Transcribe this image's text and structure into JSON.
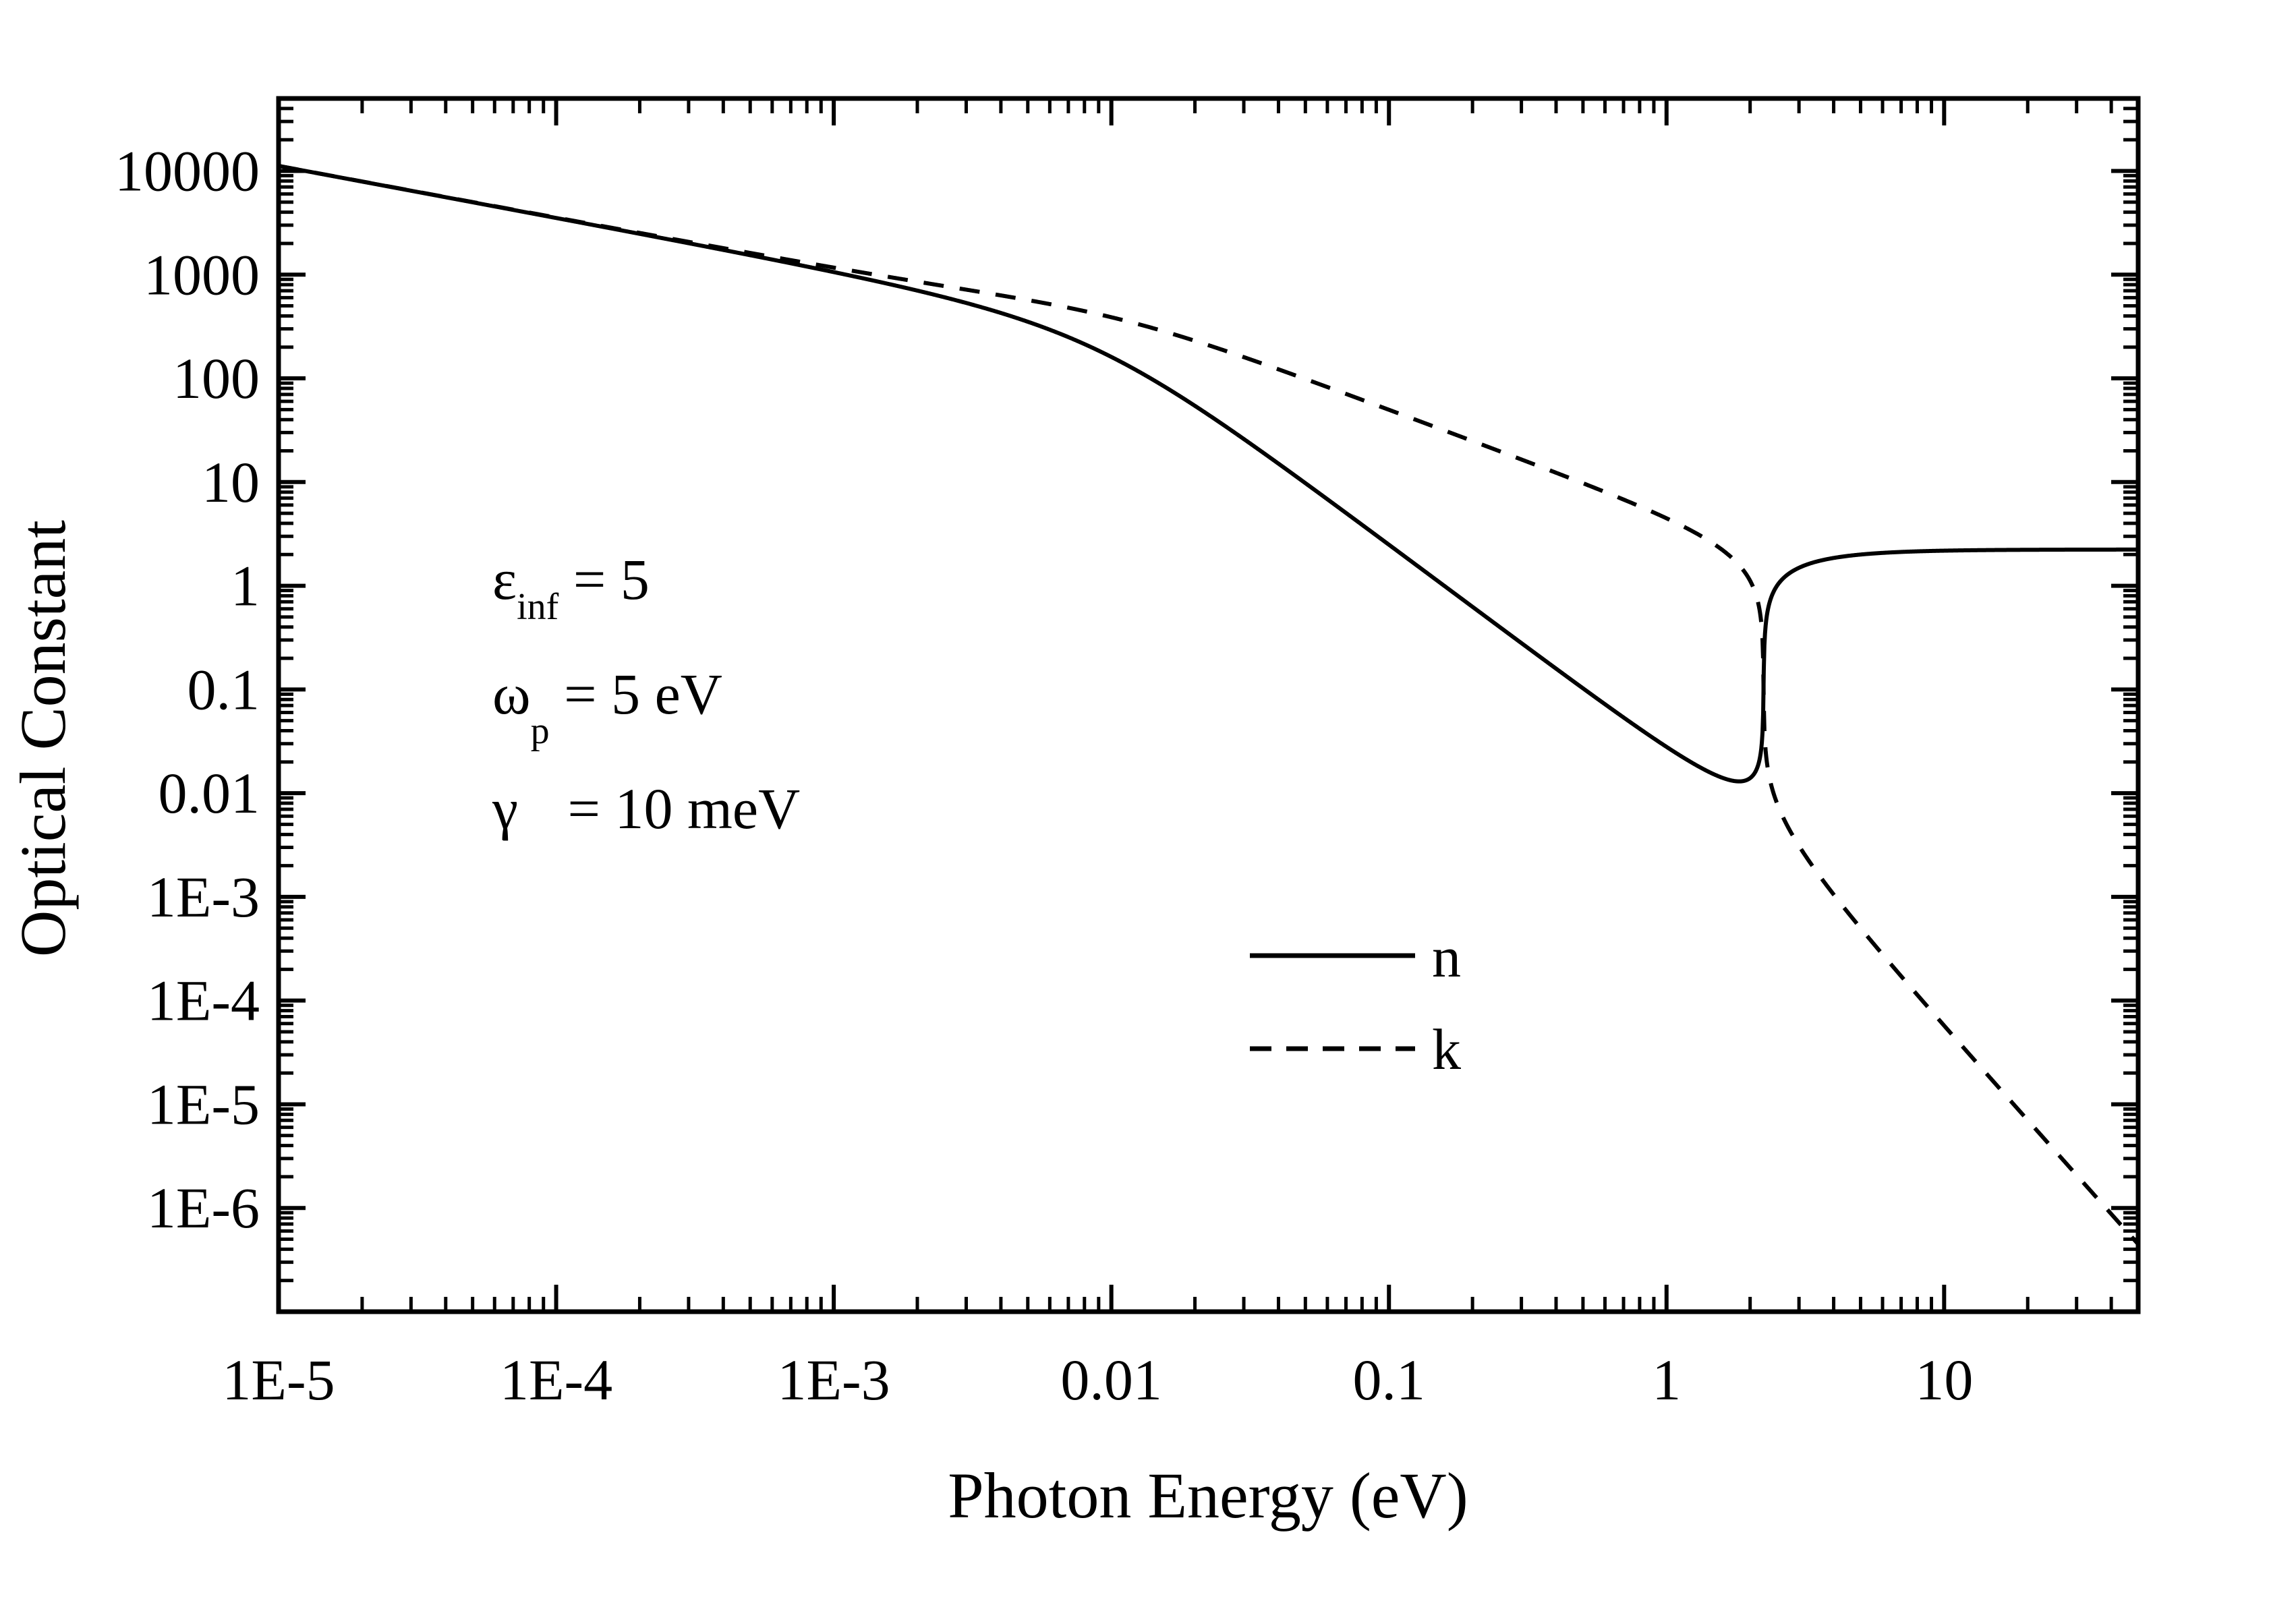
{
  "chart_data": {
    "type": "line",
    "title": "",
    "xlabel": "Photon Energy (eV)",
    "ylabel": "Optical Constant",
    "xscale": "log",
    "yscale": "log",
    "xlim": [
      1e-05,
      50
    ],
    "ylim": [
      1e-07,
      50000
    ],
    "x_ticks": [
      {
        "value": 1e-05,
        "label": "1E-5"
      },
      {
        "value": 0.0001,
        "label": "1E-4"
      },
      {
        "value": 0.001,
        "label": "1E-3"
      },
      {
        "value": 0.01,
        "label": "0.01"
      },
      {
        "value": 0.1,
        "label": "0.1"
      },
      {
        "value": 1,
        "label": "1"
      },
      {
        "value": 10,
        "label": "10"
      }
    ],
    "y_ticks": [
      {
        "value": 10000,
        "label": "10000"
      },
      {
        "value": 1000,
        "label": "1000"
      },
      {
        "value": 100,
        "label": "100"
      },
      {
        "value": 10,
        "label": "10"
      },
      {
        "value": 1,
        "label": "1"
      },
      {
        "value": 0.1,
        "label": "0.1"
      },
      {
        "value": 0.01,
        "label": "0.01"
      },
      {
        "value": 0.001,
        "label": "1E-3"
      },
      {
        "value": 0.0001,
        "label": "1E-4"
      },
      {
        "value": 1e-05,
        "label": "1E-5"
      },
      {
        "value": 1e-06,
        "label": "1E-6"
      }
    ],
    "grid": false,
    "legend_position": "lower-center",
    "series": [
      {
        "name": "n",
        "style": "solid",
        "color": "#000000"
      },
      {
        "name": "k",
        "style": "dashed",
        "color": "#000000"
      }
    ],
    "model": {
      "type": "Drude",
      "eps_inf": 5,
      "omega_p_eV": 5,
      "gamma_eV": 0.01
    },
    "annotations": {
      "eps_symbol": "ε",
      "eps_sub": "inf",
      "eps_value": " = 5",
      "omega_symbol": "ω",
      "omega_sub": "p",
      "omega_value": " = 5 eV",
      "gamma_symbol": "γ",
      "gamma_value": " = 10 meV"
    }
  }
}
